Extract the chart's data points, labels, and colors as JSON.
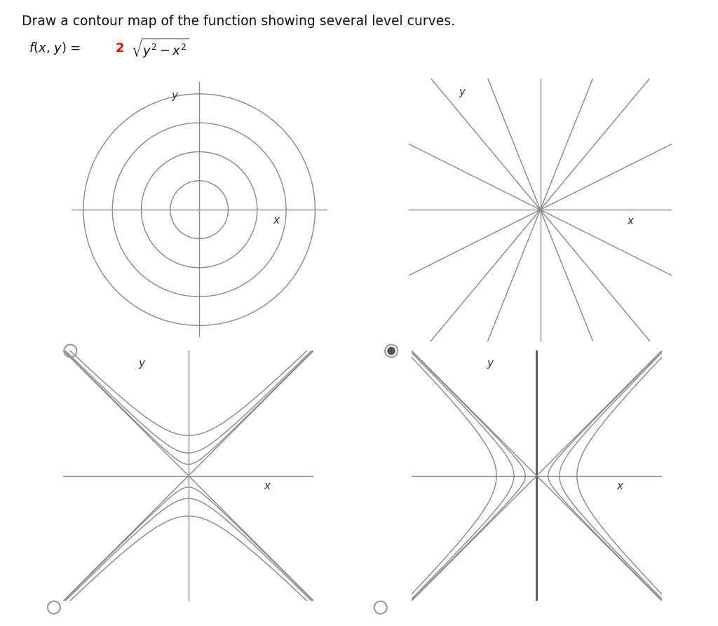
{
  "title": "Draw a contour map of the function showing several level curves.",
  "bg_color": "#ffffff",
  "line_color": "#888888",
  "axis_color": "#888888",
  "yaxis_color_br": "#555555",
  "panel_selected": 1,
  "circle_radii": [
    0.5,
    1.0,
    1.5,
    2.0
  ],
  "line_slopes": [
    -2.5,
    -1.2,
    -0.5,
    0.5,
    1.2,
    2.5
  ],
  "hyp_up_c": [
    0.04,
    0.16,
    0.5
  ],
  "hyp_side_c": [
    0.04,
    0.16,
    0.5
  ],
  "lim": 2.2,
  "font_size_label": 11
}
